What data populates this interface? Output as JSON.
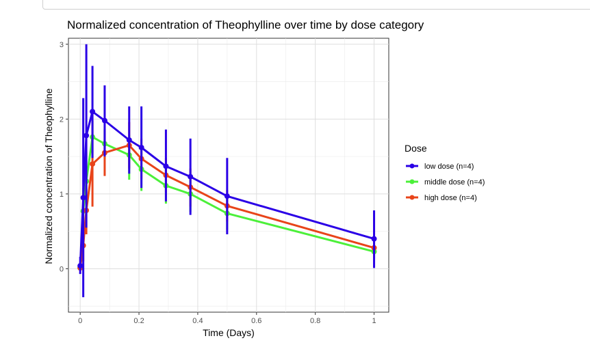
{
  "chart_data": {
    "type": "line",
    "title": "Normalized concentration of Theophylline over time by dose category",
    "xlabel": "Time (Days)",
    "ylabel": "Normalized concentration of Theophylline",
    "xlim": [
      -0.04,
      1.05
    ],
    "ylim": [
      -0.58,
      3.08
    ],
    "x_ticks": [
      0,
      0.2,
      0.4,
      0.6,
      0.8,
      1
    ],
    "x_tick_labels": [
      "0",
      "0.2",
      "0.4",
      "0.6",
      "0.8",
      "1"
    ],
    "y_ticks": [
      0,
      1,
      2,
      3
    ],
    "y_tick_labels": [
      "0",
      "1",
      "2",
      "3"
    ],
    "grid": true,
    "legend": {
      "title": "Dose",
      "position": "right"
    },
    "series": [
      {
        "name": "low dose  (n=4)",
        "color": "#2a00e6",
        "points": [
          {
            "x": 0.0,
            "y": 0.04,
            "lo": -0.07,
            "hi": 0.16
          },
          {
            "x": 0.0104,
            "y": 0.95,
            "lo": -0.38,
            "hi": 2.28
          },
          {
            "x": 0.0208,
            "y": 1.78,
            "lo": 0.55,
            "hi": 3.0
          },
          {
            "x": 0.0417,
            "y": 2.1,
            "lo": 1.48,
            "hi": 2.71
          },
          {
            "x": 0.0833,
            "y": 1.98,
            "lo": 1.5,
            "hi": 2.45
          },
          {
            "x": 0.1667,
            "y": 1.72,
            "lo": 1.27,
            "hi": 2.17
          },
          {
            "x": 0.2083,
            "y": 1.62,
            "lo": 1.08,
            "hi": 2.17
          },
          {
            "x": 0.2917,
            "y": 1.37,
            "lo": 0.9,
            "hi": 1.86
          },
          {
            "x": 0.375,
            "y": 1.23,
            "lo": 0.72,
            "hi": 1.74
          },
          {
            "x": 0.5,
            "y": 0.97,
            "lo": 0.46,
            "hi": 1.48
          },
          {
            "x": 1.0,
            "y": 0.4,
            "lo": 0.01,
            "hi": 0.78
          }
        ]
      },
      {
        "name": "middle dose  (n=4)",
        "color": "#4cf03a",
        "points": [
          {
            "x": 0.0,
            "y": 0.02,
            "lo": -0.02,
            "hi": 0.06
          },
          {
            "x": 0.0104,
            "y": 0.77,
            "lo": 0.45,
            "hi": 1.08
          },
          {
            "x": 0.0208,
            "y": 1.17,
            "lo": 0.78,
            "hi": 1.56
          },
          {
            "x": 0.0417,
            "y": 1.76,
            "lo": 1.55,
            "hi": 1.97
          },
          {
            "x": 0.0833,
            "y": 1.67,
            "lo": 1.47,
            "hi": 1.87
          },
          {
            "x": 0.1667,
            "y": 1.52,
            "lo": 1.19,
            "hi": 1.79
          },
          {
            "x": 0.2083,
            "y": 1.33,
            "lo": 1.04,
            "hi": 1.61
          },
          {
            "x": 0.2917,
            "y": 1.11,
            "lo": 0.87,
            "hi": 1.35
          },
          {
            "x": 0.375,
            "y": 1.0,
            "lo": 0.76,
            "hi": 1.24
          },
          {
            "x": 0.5,
            "y": 0.74,
            "lo": 0.52,
            "hi": 0.96
          },
          {
            "x": 1.0,
            "y": 0.23,
            "lo": 0.13,
            "hi": 0.33
          }
        ]
      },
      {
        "name": "high dose  (n=4)",
        "color": "#e8441a",
        "points": [
          {
            "x": 0.0,
            "y": 0.01,
            "lo": -0.02,
            "hi": 0.04
          },
          {
            "x": 0.0104,
            "y": 0.31,
            "lo": 0.1,
            "hi": 0.52
          },
          {
            "x": 0.0208,
            "y": 0.78,
            "lo": 0.46,
            "hi": 1.1
          },
          {
            "x": 0.0417,
            "y": 1.4,
            "lo": 0.83,
            "hi": 1.98
          },
          {
            "x": 0.0833,
            "y": 1.55,
            "lo": 1.24,
            "hi": 1.85
          },
          {
            "x": 0.1667,
            "y": 1.65,
            "lo": 1.34,
            "hi": 1.96
          },
          {
            "x": 0.2083,
            "y": 1.47,
            "lo": 1.2,
            "hi": 1.74
          },
          {
            "x": 0.2917,
            "y": 1.25,
            "lo": 1.02,
            "hi": 1.48
          },
          {
            "x": 0.375,
            "y": 1.09,
            "lo": 0.83,
            "hi": 1.34
          },
          {
            "x": 0.5,
            "y": 0.84,
            "lo": 0.63,
            "hi": 1.05
          },
          {
            "x": 1.0,
            "y": 0.28,
            "lo": 0.15,
            "hi": 0.41
          }
        ]
      }
    ]
  }
}
